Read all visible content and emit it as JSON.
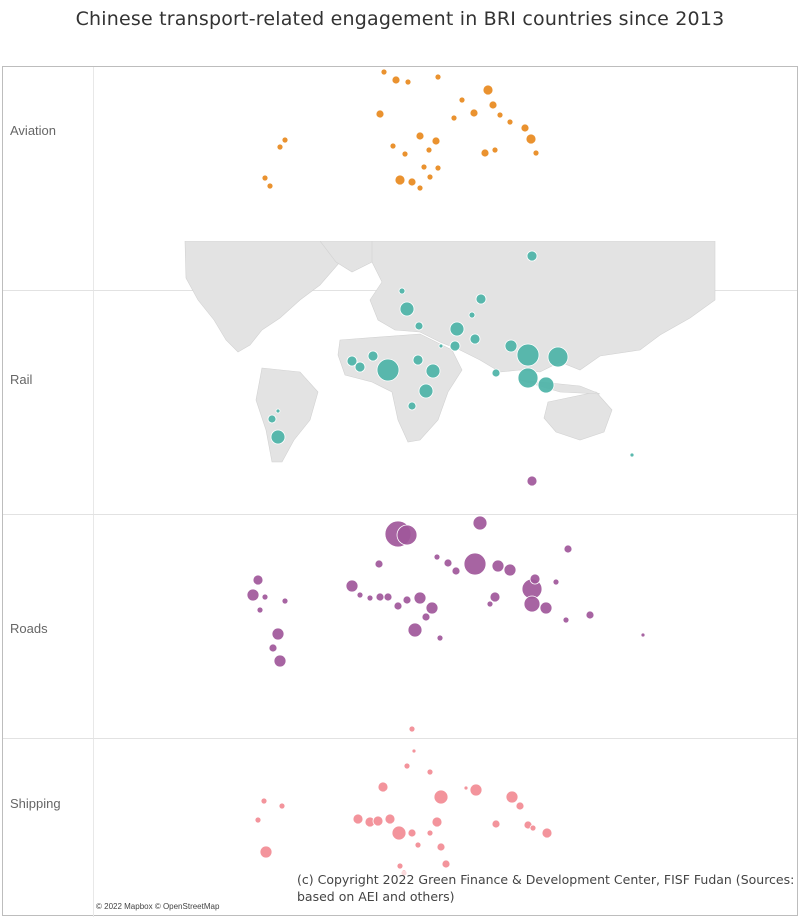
{
  "title": "Chinese transport-related engagement in BRI countries since 2013",
  "rows": [
    {
      "label": "Aviation",
      "color": "#e8891d",
      "points": [
        [
          384,
          72,
          3
        ],
        [
          396,
          80,
          4
        ],
        [
          408,
          82,
          3
        ],
        [
          438,
          77,
          3
        ],
        [
          488,
          90,
          5
        ],
        [
          493,
          105,
          4
        ],
        [
          462,
          100,
          3
        ],
        [
          454,
          118,
          3
        ],
        [
          474,
          113,
          4
        ],
        [
          500,
          115,
          3
        ],
        [
          510,
          122,
          3
        ],
        [
          525,
          128,
          4
        ],
        [
          531,
          139,
          5
        ],
        [
          536,
          153,
          3
        ],
        [
          380,
          114,
          4
        ],
        [
          420,
          136,
          4
        ],
        [
          436,
          141,
          4
        ],
        [
          393,
          146,
          3
        ],
        [
          429,
          150,
          3
        ],
        [
          405,
          154,
          3
        ],
        [
          424,
          167,
          3
        ],
        [
          438,
          168,
          3
        ],
        [
          400,
          180,
          5
        ],
        [
          412,
          182,
          4
        ],
        [
          430,
          177,
          3
        ],
        [
          420,
          188,
          3
        ],
        [
          285,
          140,
          3
        ],
        [
          280,
          147,
          3
        ],
        [
          265,
          178,
          3
        ],
        [
          270,
          186,
          3
        ],
        [
          495,
          150,
          3
        ],
        [
          485,
          153,
          4
        ]
      ]
    },
    {
      "label": "Rail",
      "color": "#4cb3a7",
      "points": [
        [
          532,
          256,
          5
        ],
        [
          402,
          291,
          3
        ],
        [
          407,
          309,
          7
        ],
        [
          481,
          299,
          5
        ],
        [
          472,
          315,
          3
        ],
        [
          457,
          329,
          7
        ],
        [
          419,
          326,
          4
        ],
        [
          441,
          346,
          2
        ],
        [
          455,
          346,
          5
        ],
        [
          475,
          339,
          5
        ],
        [
          511,
          346,
          6
        ],
        [
          528,
          355,
          11
        ],
        [
          558,
          357,
          10
        ],
        [
          528,
          378,
          10
        ],
        [
          546,
          385,
          8
        ],
        [
          496,
          373,
          4
        ],
        [
          352,
          361,
          5
        ],
        [
          360,
          367,
          5
        ],
        [
          373,
          356,
          5
        ],
        [
          388,
          370,
          11
        ],
        [
          418,
          360,
          5
        ],
        [
          433,
          371,
          7
        ],
        [
          426,
          391,
          7
        ],
        [
          412,
          406,
          4
        ],
        [
          278,
          411,
          2
        ],
        [
          272,
          419,
          4
        ],
        [
          278,
          437,
          7
        ],
        [
          632,
          455,
          2
        ]
      ]
    },
    {
      "label": "Roads",
      "color": "#a0579a",
      "points": [
        [
          532,
          481,
          5
        ],
        [
          398,
          534,
          13
        ],
        [
          407,
          535,
          10
        ],
        [
          379,
          564,
          4
        ],
        [
          480,
          523,
          7
        ],
        [
          568,
          549,
          4
        ],
        [
          437,
          557,
          3
        ],
        [
          448,
          563,
          4
        ],
        [
          456,
          571,
          4
        ],
        [
          475,
          564,
          11
        ],
        [
          498,
          566,
          6
        ],
        [
          510,
          570,
          6
        ],
        [
          532,
          589,
          10
        ],
        [
          532,
          604,
          8
        ],
        [
          535,
          579,
          5
        ],
        [
          546,
          608,
          6
        ],
        [
          556,
          582,
          3
        ],
        [
          495,
          597,
          5
        ],
        [
          490,
          604,
          3
        ],
        [
          352,
          586,
          6
        ],
        [
          360,
          595,
          3
        ],
        [
          370,
          598,
          3
        ],
        [
          380,
          597,
          4
        ],
        [
          388,
          597,
          4
        ],
        [
          398,
          606,
          4
        ],
        [
          407,
          600,
          4
        ],
        [
          420,
          598,
          6
        ],
        [
          432,
          608,
          6
        ],
        [
          426,
          617,
          4
        ],
        [
          415,
          630,
          7
        ],
        [
          440,
          638,
          3
        ],
        [
          258,
          580,
          5
        ],
        [
          253,
          595,
          6
        ],
        [
          265,
          597,
          3
        ],
        [
          285,
          601,
          3
        ],
        [
          260,
          610,
          3
        ],
        [
          278,
          634,
          6
        ],
        [
          273,
          648,
          4
        ],
        [
          280,
          661,
          6
        ],
        [
          566,
          620,
          3
        ],
        [
          590,
          615,
          4
        ],
        [
          643,
          635,
          2
        ]
      ]
    },
    {
      "label": "Shipping",
      "color": "#f28b94",
      "points": [
        [
          412,
          729,
          3
        ],
        [
          414,
          751,
          2
        ],
        [
          430,
          772,
          3
        ],
        [
          407,
          766,
          3
        ],
        [
          383,
          787,
          5
        ],
        [
          441,
          797,
          7
        ],
        [
          466,
          788,
          2
        ],
        [
          476,
          790,
          6
        ],
        [
          512,
          797,
          6
        ],
        [
          520,
          806,
          4
        ],
        [
          528,
          825,
          4
        ],
        [
          547,
          833,
          5
        ],
        [
          533,
          828,
          3
        ],
        [
          496,
          824,
          4
        ],
        [
          358,
          819,
          5
        ],
        [
          370,
          822,
          5
        ],
        [
          378,
          821,
          5
        ],
        [
          390,
          819,
          5
        ],
        [
          399,
          833,
          7
        ],
        [
          412,
          833,
          4
        ],
        [
          430,
          833,
          3
        ],
        [
          437,
          822,
          5
        ],
        [
          441,
          847,
          4
        ],
        [
          418,
          845,
          3
        ],
        [
          400,
          866,
          3
        ],
        [
          404,
          873,
          3
        ],
        [
          446,
          864,
          4
        ],
        [
          264,
          801,
          3
        ],
        [
          282,
          806,
          3
        ],
        [
          258,
          820,
          3
        ],
        [
          266,
          852,
          6
        ]
      ]
    }
  ],
  "attribution": "© 2022 Mapbox © OpenStreetMap",
  "copyright": "(c) Copyright 2022 Green Finance & Development Center, FISF Fudan (Sources: based on AEI and others)"
}
